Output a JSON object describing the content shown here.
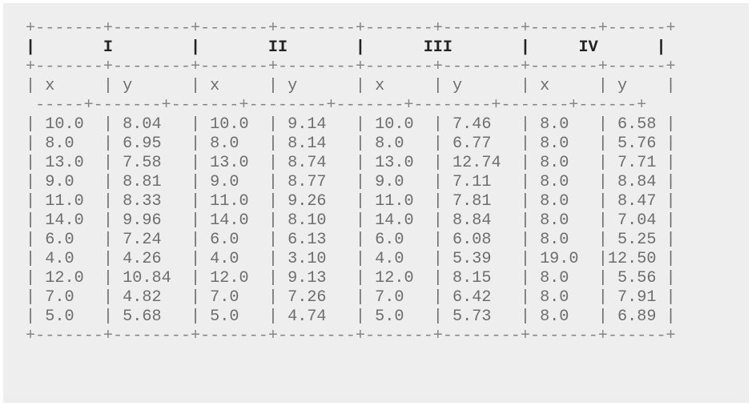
{
  "table": {
    "group_headers": [
      "I",
      "II",
      "III",
      "IV"
    ],
    "column_headers": [
      "x",
      "y",
      "x",
      "y",
      "x",
      "y",
      "x",
      "y"
    ],
    "rows": [
      [
        "10.0",
        "8.04",
        "10.0",
        "9.14",
        "10.0",
        "7.46",
        "8.0",
        "6.58"
      ],
      [
        "8.0",
        "6.95",
        "8.0",
        "8.14",
        "8.0",
        "6.77",
        "8.0",
        "5.76"
      ],
      [
        "13.0",
        "7.58",
        "13.0",
        "8.74",
        "13.0",
        "12.74",
        "8.0",
        "7.71"
      ],
      [
        "9.0",
        "8.81",
        "9.0",
        "8.77",
        "9.0",
        "7.11",
        "8.0",
        "8.84"
      ],
      [
        "11.0",
        "8.33",
        "11.0",
        "9.26",
        "11.0",
        "7.81",
        "8.0",
        "8.47"
      ],
      [
        "14.0",
        "9.96",
        "14.0",
        "8.10",
        "14.0",
        "8.84",
        "8.0",
        "7.04"
      ],
      [
        "6.0",
        "7.24",
        "6.0",
        "6.13",
        "6.0",
        "6.08",
        "8.0",
        "5.25"
      ],
      [
        "4.0",
        "4.26",
        "4.0",
        "3.10",
        "4.0",
        "5.39",
        "19.0",
        "12.50"
      ],
      [
        "12.0",
        "10.84",
        "12.0",
        "9.13",
        "12.0",
        "8.15",
        "8.0",
        "5.56"
      ],
      [
        "7.0",
        "4.82",
        "7.0",
        "7.26",
        "7.0",
        "6.42",
        "8.0",
        "7.91"
      ],
      [
        "5.0",
        "5.68",
        "5.0",
        "4.74",
        "5.0",
        "5.73",
        "8.0",
        "6.89"
      ]
    ]
  },
  "lines": {
    "border_top": "+-------+--------+-------+--------+-------+--------+-------+------+",
    "group_header": "|       I        |       II       |      III       |     IV      |",
    "border_mid": "+-------+--------+-------+--------+-------+--------+-------+------+",
    "column_header": "| x     | y      | x     | y      | x     | y      | x     | y    |",
    "border_col": "-----+-------+-------+--------+-------+--------+-------+------+",
    "rows": [
      "| 10.0  | 8.04   | 10.0  | 9.14   | 10.0  | 7.46   | 8.0   | 6.58 |",
      "| 8.0   | 6.95   | 8.0   | 8.14   | 8.0   | 6.77   | 8.0   | 5.76 |",
      "| 13.0  | 7.58   | 13.0  | 8.74   | 13.0  | 12.74  | 8.0   | 7.71 |",
      "| 9.0   | 8.81   | 9.0   | 8.77   | 9.0   | 7.11   | 8.0   | 8.84 |",
      "| 11.0  | 8.33   | 11.0  | 9.26   | 11.0  | 7.81   | 8.0   | 8.47 |",
      "| 14.0  | 9.96   | 14.0  | 8.10   | 14.0  | 8.84   | 8.0   | 7.04 |",
      "| 6.0   | 7.24   | 6.0   | 6.13   | 6.0   | 6.08   | 8.0   | 5.25 |",
      "| 4.0   | 4.26   | 4.0   | 3.10   | 4.0   | 5.39   | 19.0  |12.50 |",
      "| 12.0  | 10.84  | 12.0  | 9.13   | 12.0  | 8.15   | 8.0   | 5.56 |",
      "| 7.0   | 4.82   | 7.0   | 7.26   | 7.0   | 6.42   | 8.0   | 7.91 |",
      "| 5.0   | 5.68   | 5.0   | 4.74   | 5.0   | 5.73   | 8.0   | 6.89 |"
    ],
    "border_bottom": "+-------+--------+-------+--------+-------+--------+-------+------+"
  }
}
